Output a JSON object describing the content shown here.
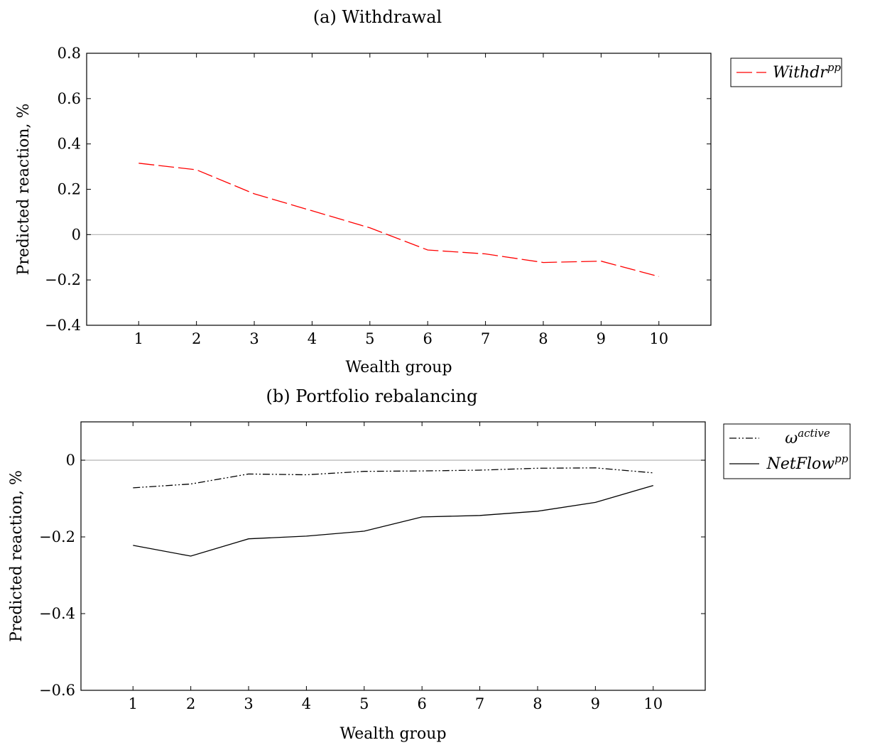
{
  "chart_data": [
    {
      "type": "line",
      "title": "(a) Withdrawal",
      "xlabel": "Wealth group",
      "ylabel": "Predicted reaction, %",
      "xlim": [
        0.1,
        10.9
      ],
      "ylim": [
        -0.4,
        0.8
      ],
      "yticks": [
        -0.4,
        -0.2,
        0,
        0.2,
        0.4,
        0.6,
        0.8
      ],
      "ytick_labels": [
        "−0.4",
        "−0.2",
        "0",
        "0.2",
        "0.4",
        "0.6",
        "0.8"
      ],
      "xticks": [
        1,
        2,
        3,
        4,
        5,
        6,
        7,
        8,
        9,
        10
      ],
      "xtick_labels": [
        "1",
        "2",
        "3",
        "4",
        "5",
        "6",
        "7",
        "8",
        "9",
        "10"
      ],
      "zero_line": true,
      "legend_position": "outside-right-top",
      "series": [
        {
          "name_base": "Withdr",
          "name_sup": "pp",
          "color": "#ff0000",
          "style": "dashed",
          "x": [
            1,
            2,
            3,
            4,
            5,
            6,
            7,
            8,
            9,
            10
          ],
          "values": [
            0.315,
            0.286,
            0.18,
            0.105,
            0.03,
            -0.068,
            -0.085,
            -0.123,
            -0.117,
            -0.185
          ]
        }
      ]
    },
    {
      "type": "line",
      "title": "(b) Portfolio rebalancing",
      "xlabel": "Wealth group",
      "ylabel": "Predicted reaction, %",
      "xlim": [
        0.1,
        10.9
      ],
      "ylim": [
        -0.6,
        0.1
      ],
      "yticks": [
        -0.6,
        -0.4,
        -0.2,
        0
      ],
      "ytick_labels": [
        "−0.6",
        "−0.4",
        "−0.2",
        "0"
      ],
      "xticks": [
        1,
        2,
        3,
        4,
        5,
        6,
        7,
        8,
        9,
        10
      ],
      "xtick_labels": [
        "1",
        "2",
        "3",
        "4",
        "5",
        "6",
        "7",
        "8",
        "9",
        "10"
      ],
      "zero_line": true,
      "legend_position": "outside-right-top",
      "series": [
        {
          "name_base": "ω",
          "name_sup": "active",
          "color": "#000000",
          "style": "dash-dot-dot",
          "x": [
            1,
            2,
            3,
            4,
            5,
            6,
            7,
            8,
            9,
            10
          ],
          "values": [
            -0.072,
            -0.062,
            -0.036,
            -0.038,
            -0.029,
            -0.028,
            -0.026,
            -0.021,
            -0.02,
            -0.033
          ]
        },
        {
          "name_base": "NetFlow",
          "name_sup": "pp",
          "color": "#000000",
          "style": "solid",
          "x": [
            1,
            2,
            3,
            4,
            5,
            6,
            7,
            8,
            9,
            10
          ],
          "values": [
            -0.222,
            -0.25,
            -0.205,
            -0.198,
            -0.185,
            -0.148,
            -0.144,
            -0.133,
            -0.11,
            -0.066
          ]
        }
      ]
    }
  ]
}
